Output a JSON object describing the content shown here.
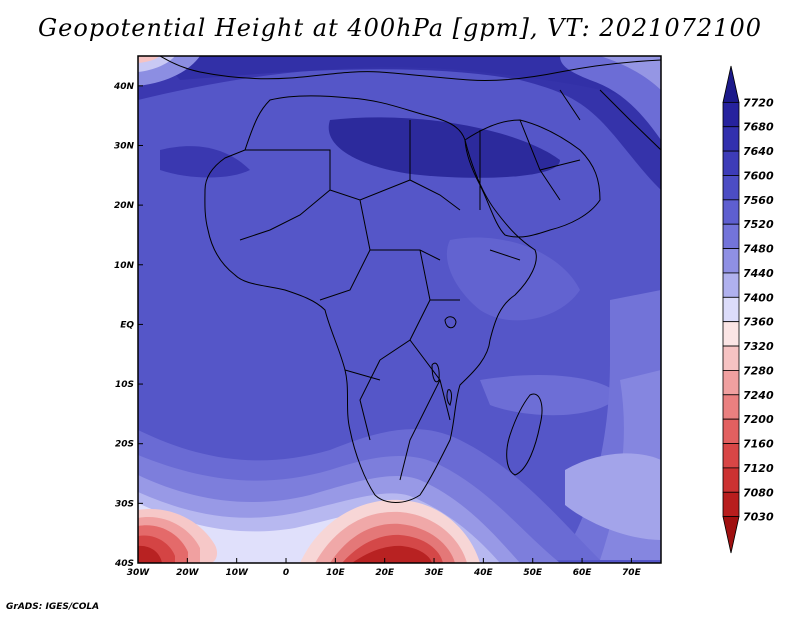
{
  "title": "Geopotential Height at 400hPa [gpm], VT: 2021072100",
  "footer": "GrADS: IGES/COLA",
  "axes": {
    "lon_labels": [
      "30W",
      "20W",
      "10W",
      "0",
      "10E",
      "20E",
      "30E",
      "40E",
      "50E",
      "60E",
      "70E"
    ],
    "lat_labels": [
      "40N",
      "30N",
      "20N",
      "10N",
      "EQ",
      "10S",
      "20S",
      "30S",
      "40S"
    ]
  },
  "colorbar": {
    "labels": [
      "7720",
      "7680",
      "7640",
      "7600",
      "7560",
      "7520",
      "7480",
      "7440",
      "7400",
      "7360",
      "7320",
      "7280",
      "7240",
      "7200",
      "7160",
      "7120",
      "7080",
      "7030"
    ],
    "colors": [
      "#1c1a8a",
      "#26229e",
      "#3230ae",
      "#3d3cb8",
      "#4c4dc4",
      "#5e5fd0",
      "#7374da",
      "#8f90e4",
      "#b0b1ee",
      "#dcdcfa",
      "#fbe5e5",
      "#f6c3c3",
      "#f0a0a0",
      "#ea8080",
      "#e26060",
      "#d84646",
      "#cc3232",
      "#b81e1e",
      "#a01010"
    ]
  },
  "map": {
    "projection": "lat-lon",
    "lon_range": [
      -30,
      76
    ],
    "lat_range": [
      -40,
      45
    ],
    "field": "geopotential height",
    "level": "400hPa",
    "units": "gpm",
    "valid_time": "2021072100"
  }
}
